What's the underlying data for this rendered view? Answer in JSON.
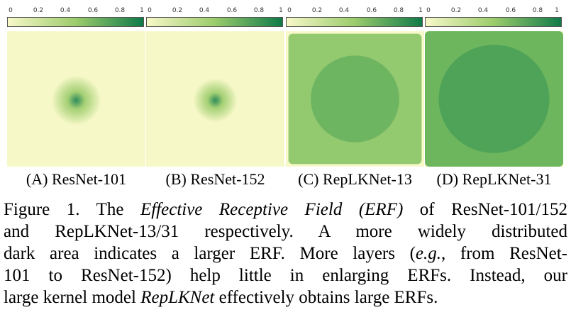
{
  "colorbar": {
    "ticks": [
      "0",
      "0.2",
      "0.4",
      "0.6",
      "0.8",
      "1"
    ],
    "color_low": "#f7f8c8",
    "color_mid": "#9ccc6c",
    "color_high": "#0f7a48"
  },
  "panels": [
    {
      "label": "(A) ResNet-101",
      "erf_extent": 0.18,
      "peak_intensity": 0.85
    },
    {
      "label": "(B) ResNet-152",
      "erf_extent": 0.16,
      "peak_intensity": 0.85
    },
    {
      "label": "(C) RepLKNet-13",
      "erf_extent": 0.8,
      "peak_intensity": 0.65
    },
    {
      "label": "(D) RepLKNet-31",
      "erf_extent": 1.0,
      "peak_intensity": 0.75
    }
  ],
  "caption": {
    "figure_label": "Figure 1.",
    "part1": " The ",
    "term_erf": "Effective Receptive Field (ERF)",
    "part2": " of ResNet-101/152",
    "line2": "and RepLKNet-13/31 respectively.  A more widely distributed",
    "line3": "dark area indicates a larger ERF. More layers (",
    "eg": "e.g.",
    "line3b": ", from ResNet-",
    "line4": "101 to ResNet-152) help little in enlarging ERFs.  Instead, our",
    "line5a": "large kernel model ",
    "term_model": "RepLKNet",
    "line5b": " effectively obtains large ERFs."
  }
}
